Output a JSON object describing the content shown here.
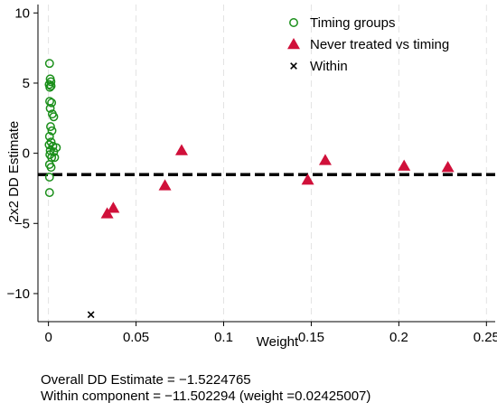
{
  "chart_data": {
    "type": "scatter",
    "xlabel": "Weight",
    "ylabel": "2x2 DD Estimate",
    "xlim": [
      -0.006,
      0.255
    ],
    "ylim": [
      -12.0,
      10.6
    ],
    "xticks": [
      0,
      0.05,
      0.1,
      0.15,
      0.2,
      0.25
    ],
    "xtick_labels": [
      "0",
      "0.05",
      "0.1",
      "0.15",
      "0.2",
      "0.25"
    ],
    "yticks": [
      10,
      5,
      0,
      -5,
      -10
    ],
    "ytick_labels": [
      "10",
      "5",
      "0",
      "−5",
      "−10"
    ],
    "grid": "vertical dashed",
    "legend_position": "top-right",
    "reference_line": {
      "y": -1.5224765,
      "style": "dashed",
      "color": "#000000"
    },
    "series": [
      {
        "name": "Timing groups",
        "marker": "hollow-circle",
        "color": "#1a8f1a",
        "points": [
          [
            0.0006,
            6.4
          ],
          [
            0.001,
            5.3
          ],
          [
            0.0014,
            5.1
          ],
          [
            0.0004,
            4.9
          ],
          [
            0.0008,
            4.7
          ],
          [
            0.0015,
            4.8
          ],
          [
            0.0007,
            3.7
          ],
          [
            0.0018,
            3.6
          ],
          [
            0.001,
            3.2
          ],
          [
            0.0022,
            2.8
          ],
          [
            0.003,
            2.6
          ],
          [
            0.0012,
            1.9
          ],
          [
            0.002,
            1.6
          ],
          [
            0.0006,
            1.2
          ],
          [
            0.0015,
            0.8
          ],
          [
            0.0004,
            0.6
          ],
          [
            0.0025,
            0.5
          ],
          [
            0.0045,
            0.4
          ],
          [
            0.001,
            0.2
          ],
          [
            0.003,
            0.1
          ],
          [
            0.0008,
            -0.1
          ],
          [
            0.0018,
            -0.3
          ],
          [
            0.0035,
            -0.3
          ],
          [
            0.0006,
            -0.8
          ],
          [
            0.0015,
            -1.0
          ],
          [
            0.0006,
            -1.7
          ],
          [
            0.0006,
            -2.8
          ]
        ]
      },
      {
        "name": "Never treated vs timing",
        "marker": "filled-triangle",
        "color": "#d0103a",
        "points": [
          [
            0.0335,
            -4.3
          ],
          [
            0.037,
            -3.9
          ],
          [
            0.0665,
            -2.3
          ],
          [
            0.076,
            0.2
          ],
          [
            0.148,
            -1.9
          ],
          [
            0.158,
            -0.5
          ],
          [
            0.203,
            -0.9
          ],
          [
            0.228,
            -1.0
          ]
        ]
      },
      {
        "name": "Within",
        "marker": "x",
        "color": "#000000",
        "points": [
          [
            0.02425007,
            -11.502294
          ]
        ]
      }
    ]
  },
  "notes": {
    "overall": "Overall DD Estimate = −1.5224765",
    "within": "Within component = −11.502294 (weight =0.02425007)"
  }
}
